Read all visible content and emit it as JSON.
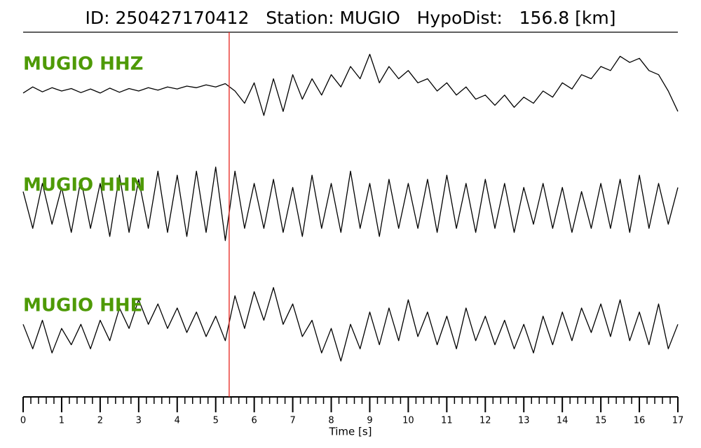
{
  "chart_data": {
    "type": "seismogram",
    "title": "ID: 250427170412   Station: MUGIO   HypoDist:   156.8 [km]",
    "x_label": "Time [s]",
    "xlim": [
      0,
      17
    ],
    "xticks": [
      0,
      1,
      2,
      3,
      4,
      5,
      6,
      7,
      8,
      9,
      10,
      11,
      12,
      13,
      14,
      15,
      16,
      17
    ],
    "xminorticks": [
      0.2,
      0.4,
      0.6,
      0.8,
      1.2,
      1.4,
      1.6,
      1.8,
      2.2,
      2.4,
      2.6,
      2.8,
      3.2,
      3.4,
      3.6,
      3.8,
      4.2,
      4.4,
      4.6,
      4.8,
      5.2,
      5.4,
      5.6,
      5.8,
      6.2,
      6.4,
      6.6,
      6.8,
      7.2,
      7.4,
      7.6,
      7.8,
      8.2,
      8.4,
      8.6,
      8.8,
      9.2,
      9.4,
      9.6,
      9.8,
      10.2,
      10.4,
      10.6,
      10.8,
      11.2,
      11.4,
      11.6,
      11.8,
      12.2,
      12.4,
      12.6,
      12.8,
      13.2,
      13.4,
      13.6,
      13.8,
      14.2,
      14.4,
      14.6,
      14.8,
      15.2,
      15.4,
      15.6,
      15.8,
      16.2,
      16.4,
      16.6,
      16.8
    ],
    "ylim": [
      -1.2,
      1.2
    ],
    "pick_time": 5.35,
    "pick_color": "#e8221b",
    "label_color": "#4e9a06",
    "x": [
      0,
      0.25,
      0.5,
      0.75,
      1,
      1.25,
      1.5,
      1.75,
      2,
      2.25,
      2.5,
      2.75,
      3,
      3.25,
      3.5,
      3.75,
      4,
      4.25,
      4.5,
      4.75,
      5,
      5.25,
      5.5,
      5.75,
      6,
      6.25,
      6.5,
      6.75,
      7,
      7.25,
      7.5,
      7.75,
      8,
      8.25,
      8.5,
      8.75,
      9,
      9.25,
      9.5,
      9.75,
      10,
      10.25,
      10.5,
      10.75,
      11,
      11.25,
      11.5,
      11.75,
      12,
      12.25,
      12.5,
      12.75,
      13,
      13.25,
      13.5,
      13.75,
      14,
      14.25,
      14.5,
      14.75,
      15,
      15.25,
      15.5,
      15.75,
      16,
      16.25,
      16.5,
      16.75,
      17
    ],
    "series": [
      {
        "name": "MUGIO HHZ",
        "color": "#000000",
        "values": [
          -0.05,
          0.1,
          -0.02,
          0.08,
          0.0,
          0.06,
          -0.04,
          0.05,
          -0.05,
          0.07,
          -0.03,
          0.06,
          0.0,
          0.08,
          0.02,
          0.1,
          0.05,
          0.12,
          0.08,
          0.15,
          0.1,
          0.18,
          0.0,
          -0.3,
          0.2,
          -0.6,
          0.3,
          -0.5,
          0.4,
          -0.2,
          0.3,
          -0.1,
          0.4,
          0.1,
          0.6,
          0.3,
          0.9,
          0.2,
          0.6,
          0.3,
          0.5,
          0.2,
          0.3,
          0.0,
          0.2,
          -0.1,
          0.1,
          -0.2,
          -0.1,
          -0.35,
          -0.1,
          -0.4,
          -0.15,
          -0.3,
          0.0,
          -0.15,
          0.2,
          0.05,
          0.4,
          0.3,
          0.6,
          0.5,
          0.85,
          0.7,
          0.8,
          0.5,
          0.4,
          0.0,
          -0.5
        ]
      },
      {
        "name": "MUGIO HHN",
        "color": "#000000",
        "values": [
          0.4,
          -0.5,
          0.6,
          -0.4,
          0.5,
          -0.6,
          0.7,
          -0.5,
          0.6,
          -0.7,
          0.8,
          -0.6,
          0.7,
          -0.5,
          0.9,
          -0.6,
          0.8,
          -0.7,
          0.9,
          -0.6,
          1.0,
          -0.8,
          0.9,
          -0.5,
          0.6,
          -0.5,
          0.7,
          -0.6,
          0.5,
          -0.7,
          0.8,
          -0.5,
          0.6,
          -0.6,
          0.9,
          -0.5,
          0.6,
          -0.7,
          0.7,
          -0.5,
          0.6,
          -0.5,
          0.7,
          -0.6,
          0.8,
          -0.5,
          0.6,
          -0.6,
          0.7,
          -0.5,
          0.6,
          -0.6,
          0.5,
          -0.4,
          0.6,
          -0.5,
          0.5,
          -0.6,
          0.4,
          -0.5,
          0.6,
          -0.5,
          0.7,
          -0.6,
          0.8,
          -0.5,
          0.6,
          -0.4,
          0.5
        ]
      },
      {
        "name": "MUGIO HHE",
        "color": "#000000",
        "values": [
          0.2,
          -0.4,
          0.3,
          -0.5,
          0.1,
          -0.3,
          0.2,
          -0.4,
          0.3,
          -0.2,
          0.6,
          0.1,
          0.8,
          0.2,
          0.7,
          0.1,
          0.6,
          0.0,
          0.5,
          -0.1,
          0.4,
          -0.2,
          0.9,
          0.1,
          1.0,
          0.3,
          1.1,
          0.2,
          0.7,
          -0.1,
          0.3,
          -0.5,
          0.1,
          -0.7,
          0.2,
          -0.4,
          0.5,
          -0.3,
          0.6,
          -0.2,
          0.8,
          -0.1,
          0.5,
          -0.3,
          0.4,
          -0.4,
          0.6,
          -0.2,
          0.4,
          -0.3,
          0.3,
          -0.4,
          0.2,
          -0.5,
          0.4,
          -0.3,
          0.5,
          -0.2,
          0.6,
          0.0,
          0.7,
          -0.1,
          0.8,
          -0.2,
          0.5,
          -0.3,
          0.7,
          -0.4,
          0.2
        ]
      }
    ]
  }
}
